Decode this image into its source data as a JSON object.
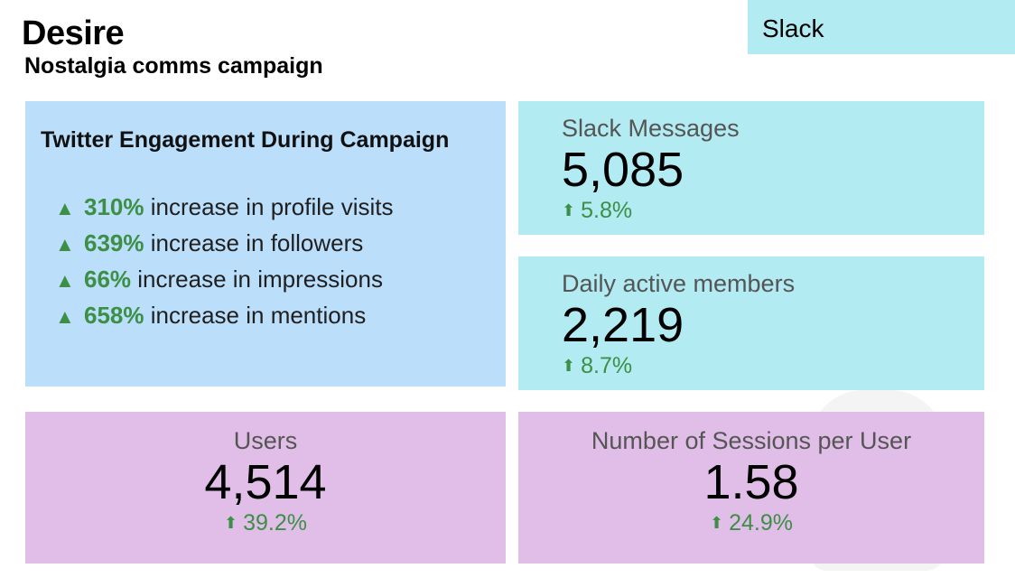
{
  "header": {
    "title": "Desire",
    "subtitle": "Nostalgia comms campaign",
    "tag": "Slack"
  },
  "twitter": {
    "title": "Twitter Engagement During Campaign",
    "items": [
      {
        "pct": "310%",
        "text": "increase in profile visits"
      },
      {
        "pct": "639%",
        "text": "increase in followers"
      },
      {
        "pct": "66%",
        "text": "increase in impressions"
      },
      {
        "pct": "658%",
        "text": "increase in mentions"
      }
    ],
    "icon": "triangle-up-icon"
  },
  "metrics": {
    "slack_messages": {
      "label": "Slack Messages",
      "value": "5,085",
      "delta": "5.8%"
    },
    "daily_active": {
      "label": "Daily active members",
      "value": "2,219",
      "delta": "8.7%"
    },
    "users": {
      "label": "Users",
      "value": "4,514",
      "delta": "39.2%"
    },
    "sessions": {
      "label": "Number of Sessions per User",
      "value": "1.58",
      "delta": "24.9%"
    }
  },
  "colors": {
    "blue_card": "#bbdefb",
    "cyan_card": "#b2ebf2",
    "pink_card": "#e1bee7",
    "positive": "#3c8f45"
  }
}
